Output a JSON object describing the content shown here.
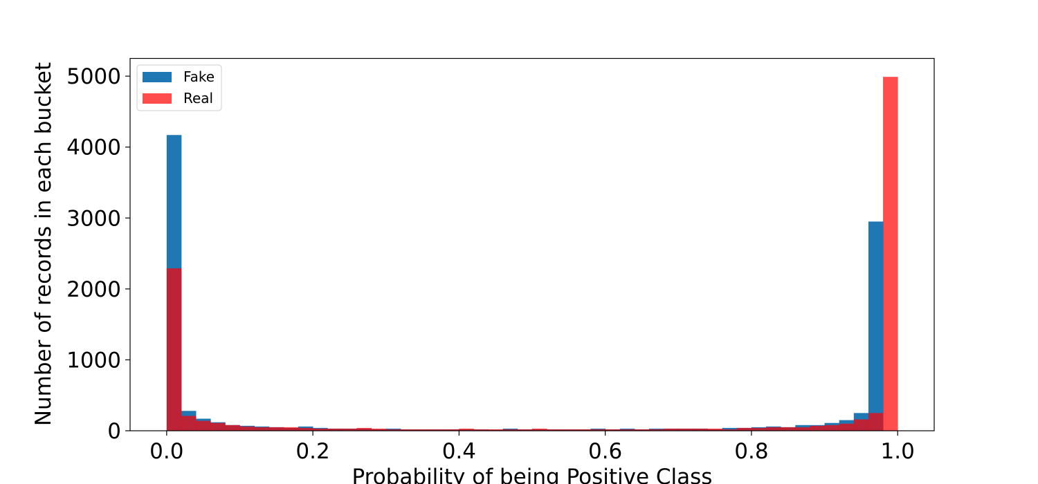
{
  "chart_data": {
    "type": "histogram",
    "xlabel": "Probability of being Positive Class",
    "ylabel": "Number of records in each bucket",
    "xlim": [
      -0.05,
      1.05
    ],
    "ylim": [
      0,
      5250
    ],
    "xticks": [
      0.0,
      0.2,
      0.4,
      0.6,
      0.8,
      1.0
    ],
    "xtick_labels": [
      "0.0",
      "0.2",
      "0.4",
      "0.6",
      "0.8",
      "1.0"
    ],
    "yticks": [
      0,
      1000,
      2000,
      3000,
      4000,
      5000
    ],
    "ytick_labels": [
      "0",
      "1000",
      "2000",
      "3000",
      "4000",
      "5000"
    ],
    "bins": 50,
    "bin_range": [
      0,
      1
    ],
    "grid": false,
    "legend": "top-left",
    "series": [
      {
        "name": "Fake",
        "color": "#1f77b4",
        "opacity": 1.0,
        "values": [
          4170,
          280,
          170,
          120,
          80,
          70,
          60,
          50,
          40,
          60,
          40,
          30,
          30,
          30,
          20,
          30,
          20,
          20,
          20,
          20,
          20,
          20,
          15,
          30,
          20,
          20,
          20,
          20,
          20,
          30,
          20,
          30,
          20,
          30,
          30,
          30,
          30,
          20,
          40,
          40,
          50,
          60,
          50,
          80,
          80,
          110,
          150,
          250,
          2950,
          0
        ]
      },
      {
        "name": "Real",
        "color": "#ff0000",
        "opacity": 0.7,
        "values": [
          2290,
          210,
          140,
          110,
          80,
          60,
          50,
          50,
          50,
          40,
          30,
          30,
          30,
          40,
          30,
          20,
          20,
          20,
          20,
          20,
          30,
          20,
          20,
          20,
          20,
          30,
          20,
          20,
          20,
          20,
          20,
          20,
          20,
          20,
          30,
          30,
          30,
          30,
          20,
          40,
          40,
          50,
          50,
          50,
          70,
          80,
          100,
          160,
          250,
          4990
        ]
      }
    ]
  }
}
